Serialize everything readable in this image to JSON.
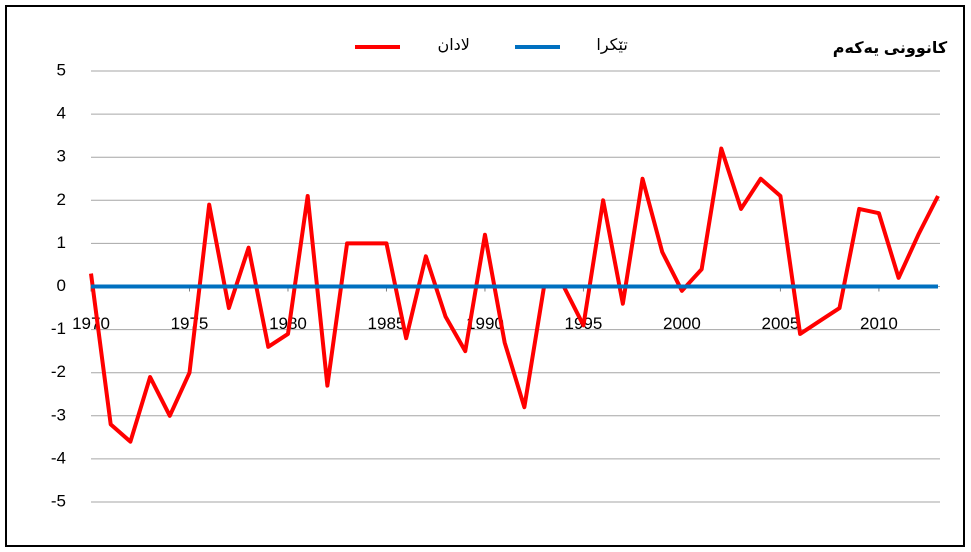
{
  "chart_data": {
    "type": "line",
    "title": "کانوونی یەکەم",
    "x": [
      1970,
      1971,
      1972,
      1973,
      1974,
      1975,
      1976,
      1977,
      1978,
      1979,
      1980,
      1981,
      1982,
      1983,
      1984,
      1985,
      1986,
      1987,
      1988,
      1989,
      1990,
      1991,
      1992,
      1993,
      1994,
      1995,
      1996,
      1997,
      1998,
      1999,
      2000,
      2001,
      2002,
      2003,
      2004,
      2005,
      2006,
      2007,
      2008,
      2009,
      2010,
      2011,
      2012,
      2013
    ],
    "series": [
      {
        "name": "لادان",
        "color": "#ff0000",
        "values": [
          0.3,
          -3.2,
          -3.6,
          -2.1,
          -3.0,
          -2.0,
          1.9,
          -0.5,
          0.9,
          -1.4,
          -1.1,
          2.1,
          -2.3,
          1.0,
          1.0,
          1.0,
          -1.2,
          0.7,
          -0.7,
          -1.5,
          1.2,
          -1.3,
          -2.8,
          0.0,
          0.0,
          -0.9,
          2.0,
          -0.4,
          2.5,
          0.8,
          -0.1,
          0.4,
          3.2,
          1.8,
          2.5,
          2.1,
          -1.1,
          -0.8,
          -0.5,
          1.8,
          1.7,
          0.2,
          1.2,
          2.1
        ]
      },
      {
        "name": "تێکرا",
        "color": "#0070c0",
        "values": [
          0,
          0,
          0,
          0,
          0,
          0,
          0,
          0,
          0,
          0,
          0,
          0,
          0,
          0,
          0,
          0,
          0,
          0,
          0,
          0,
          0,
          0,
          0,
          0,
          0,
          0,
          0,
          0,
          0,
          0,
          0,
          0,
          0,
          0,
          0,
          0,
          0,
          0,
          0,
          0,
          0,
          0,
          0,
          0
        ]
      }
    ],
    "xlim": [
      1970,
      2013
    ],
    "xticks": [
      1970,
      1975,
      1980,
      1985,
      1990,
      1995,
      2000,
      2005,
      2010
    ],
    "ylim": [
      -5,
      5
    ],
    "yticks": [
      -5,
      -4,
      -3,
      -2,
      -1,
      0,
      1,
      2,
      3,
      4,
      5
    ],
    "grid": true,
    "legend": "top"
  }
}
